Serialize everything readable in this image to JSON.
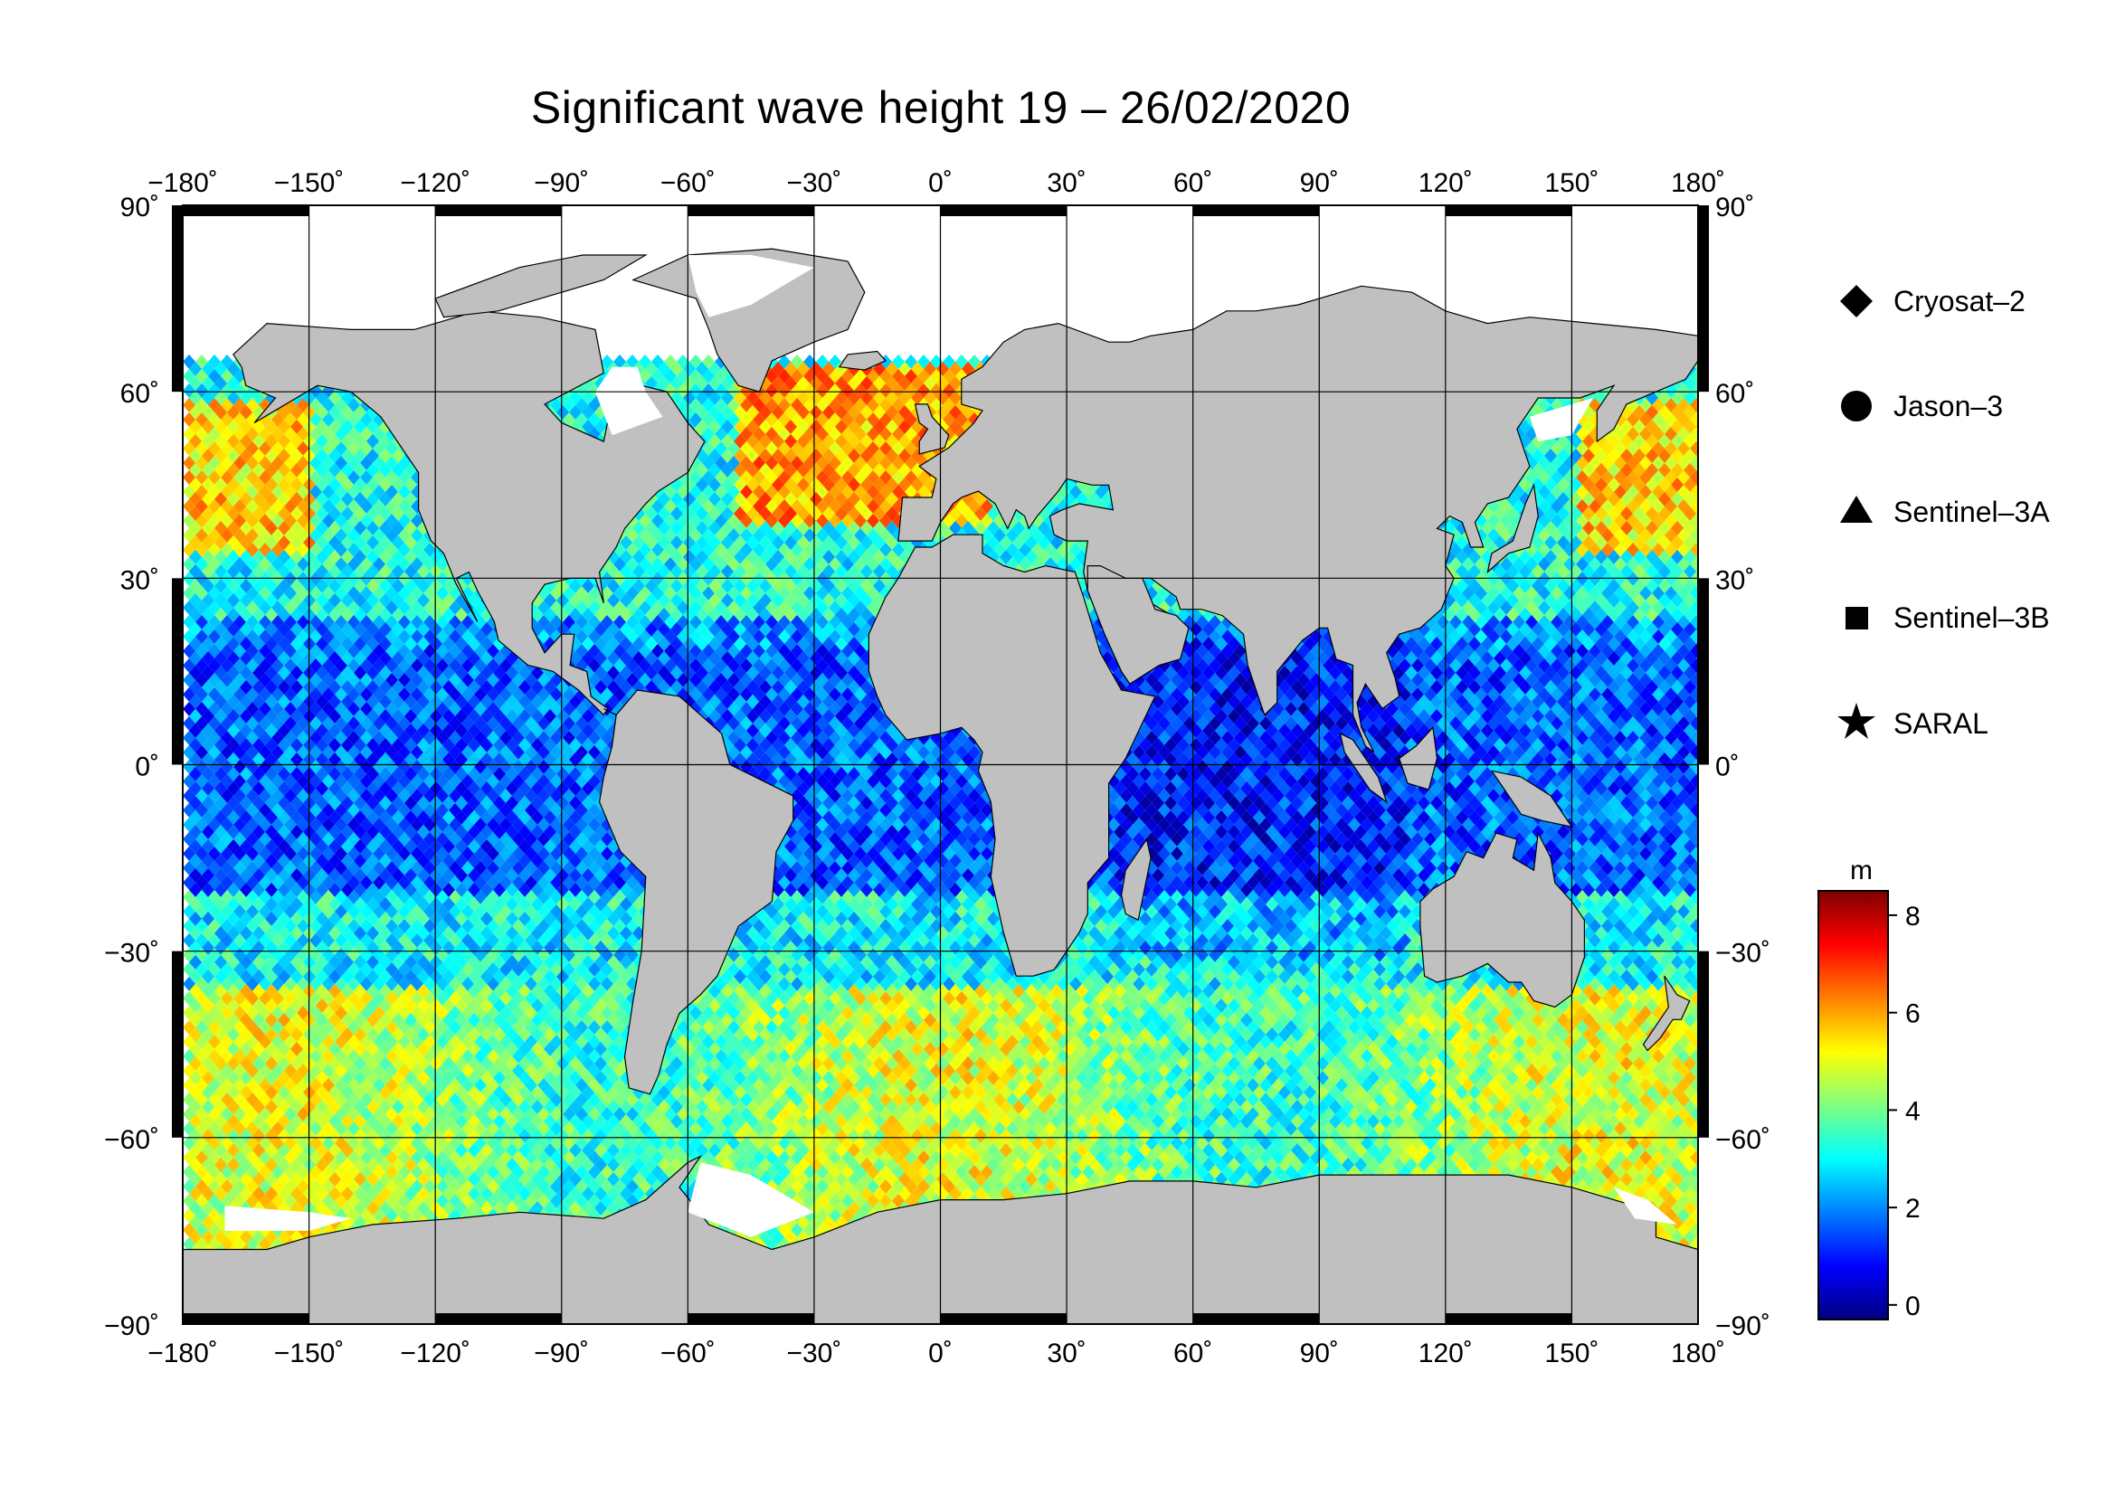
{
  "title": "Significant wave height 19 – 26/02/2020",
  "axes": {
    "lon_ticks": [
      "−180˚",
      "−150˚",
      "−120˚",
      "−90˚",
      "−60˚",
      "−30˚",
      "0˚",
      "30˚",
      "60˚",
      "90˚",
      "120˚",
      "150˚",
      "180˚"
    ],
    "lat_ticks": [
      "90˚",
      "60˚",
      "30˚",
      "0˚",
      "−30˚",
      "−60˚",
      "−90˚"
    ],
    "lon_range": [
      -180,
      180
    ],
    "lat_range": [
      -90,
      90
    ],
    "grid": true
  },
  "legend": {
    "items": [
      {
        "label": "Cryosat–2",
        "symbol": "diamond"
      },
      {
        "label": "Jason–3",
        "symbol": "circle"
      },
      {
        "label": "Sentinel–3A",
        "symbol": "triangle"
      },
      {
        "label": "Sentinel–3B",
        "symbol": "square"
      },
      {
        "label": "SARAL",
        "symbol": "star"
      }
    ]
  },
  "colorbar": {
    "unit": "m",
    "ticks": [
      "8",
      "6",
      "4",
      "2",
      "0"
    ],
    "range": [
      -0.3,
      8.5
    ],
    "colors": [
      "#00007f",
      "#0000ff",
      "#007fff",
      "#00ffff",
      "#7fff7f",
      "#ffff00",
      "#ff7f00",
      "#ff0000",
      "#7f0000"
    ]
  },
  "map_colors": {
    "land": "#c0c0c0",
    "ice": "#ffffff",
    "ocean_calm": "#1e3cff",
    "ocean_mid": "#22c8f0",
    "ocean_high": "#f0e020",
    "ocean_storm": "#e82010"
  }
}
